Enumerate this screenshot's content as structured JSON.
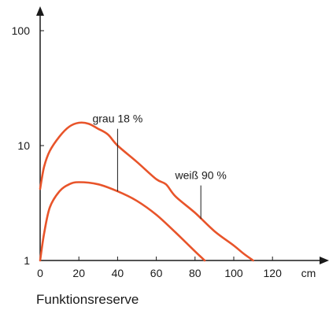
{
  "chart_data": {
    "type": "line",
    "title": "",
    "xlabel": "",
    "ylabel": "",
    "x_unit": "cm",
    "caption": "Funktionsreserve",
    "xlim": [
      0,
      125
    ],
    "ylim": [
      1,
      100
    ],
    "yscale": "log",
    "x_ticks": [
      0,
      20,
      40,
      60,
      80,
      100,
      120
    ],
    "y_ticks": [
      1,
      10,
      100
    ],
    "grid": false,
    "color": "#e8542a",
    "series": [
      {
        "x": [
          0,
          2,
          5,
          10,
          15,
          20,
          25,
          30,
          35,
          40,
          50,
          60,
          65,
          70,
          80,
          90,
          100,
          105,
          110
        ],
        "y": [
          4.2,
          6.5,
          9.0,
          12.0,
          14.6,
          15.8,
          15.5,
          14.0,
          12.5,
          10.0,
          7.2,
          5.1,
          4.6,
          3.6,
          2.6,
          1.8,
          1.35,
          1.15,
          1.0
        ]
      },
      {
        "x": [
          0,
          2,
          5,
          10,
          15,
          20,
          30,
          40,
          50,
          60,
          70,
          75,
          80,
          85
        ],
        "y": [
          1.0,
          1.7,
          2.9,
          4.0,
          4.6,
          4.8,
          4.6,
          4.0,
          3.3,
          2.5,
          1.75,
          1.45,
          1.2,
          1.0
        ]
      }
    ],
    "annotations": [
      {
        "text": "grau 18 %",
        "x": 40,
        "y_from": 4.0,
        "y_to": 14
      },
      {
        "text": "weiß 90 %",
        "x": 83,
        "y_from": 2.3,
        "y_to": 4.5
      }
    ]
  }
}
